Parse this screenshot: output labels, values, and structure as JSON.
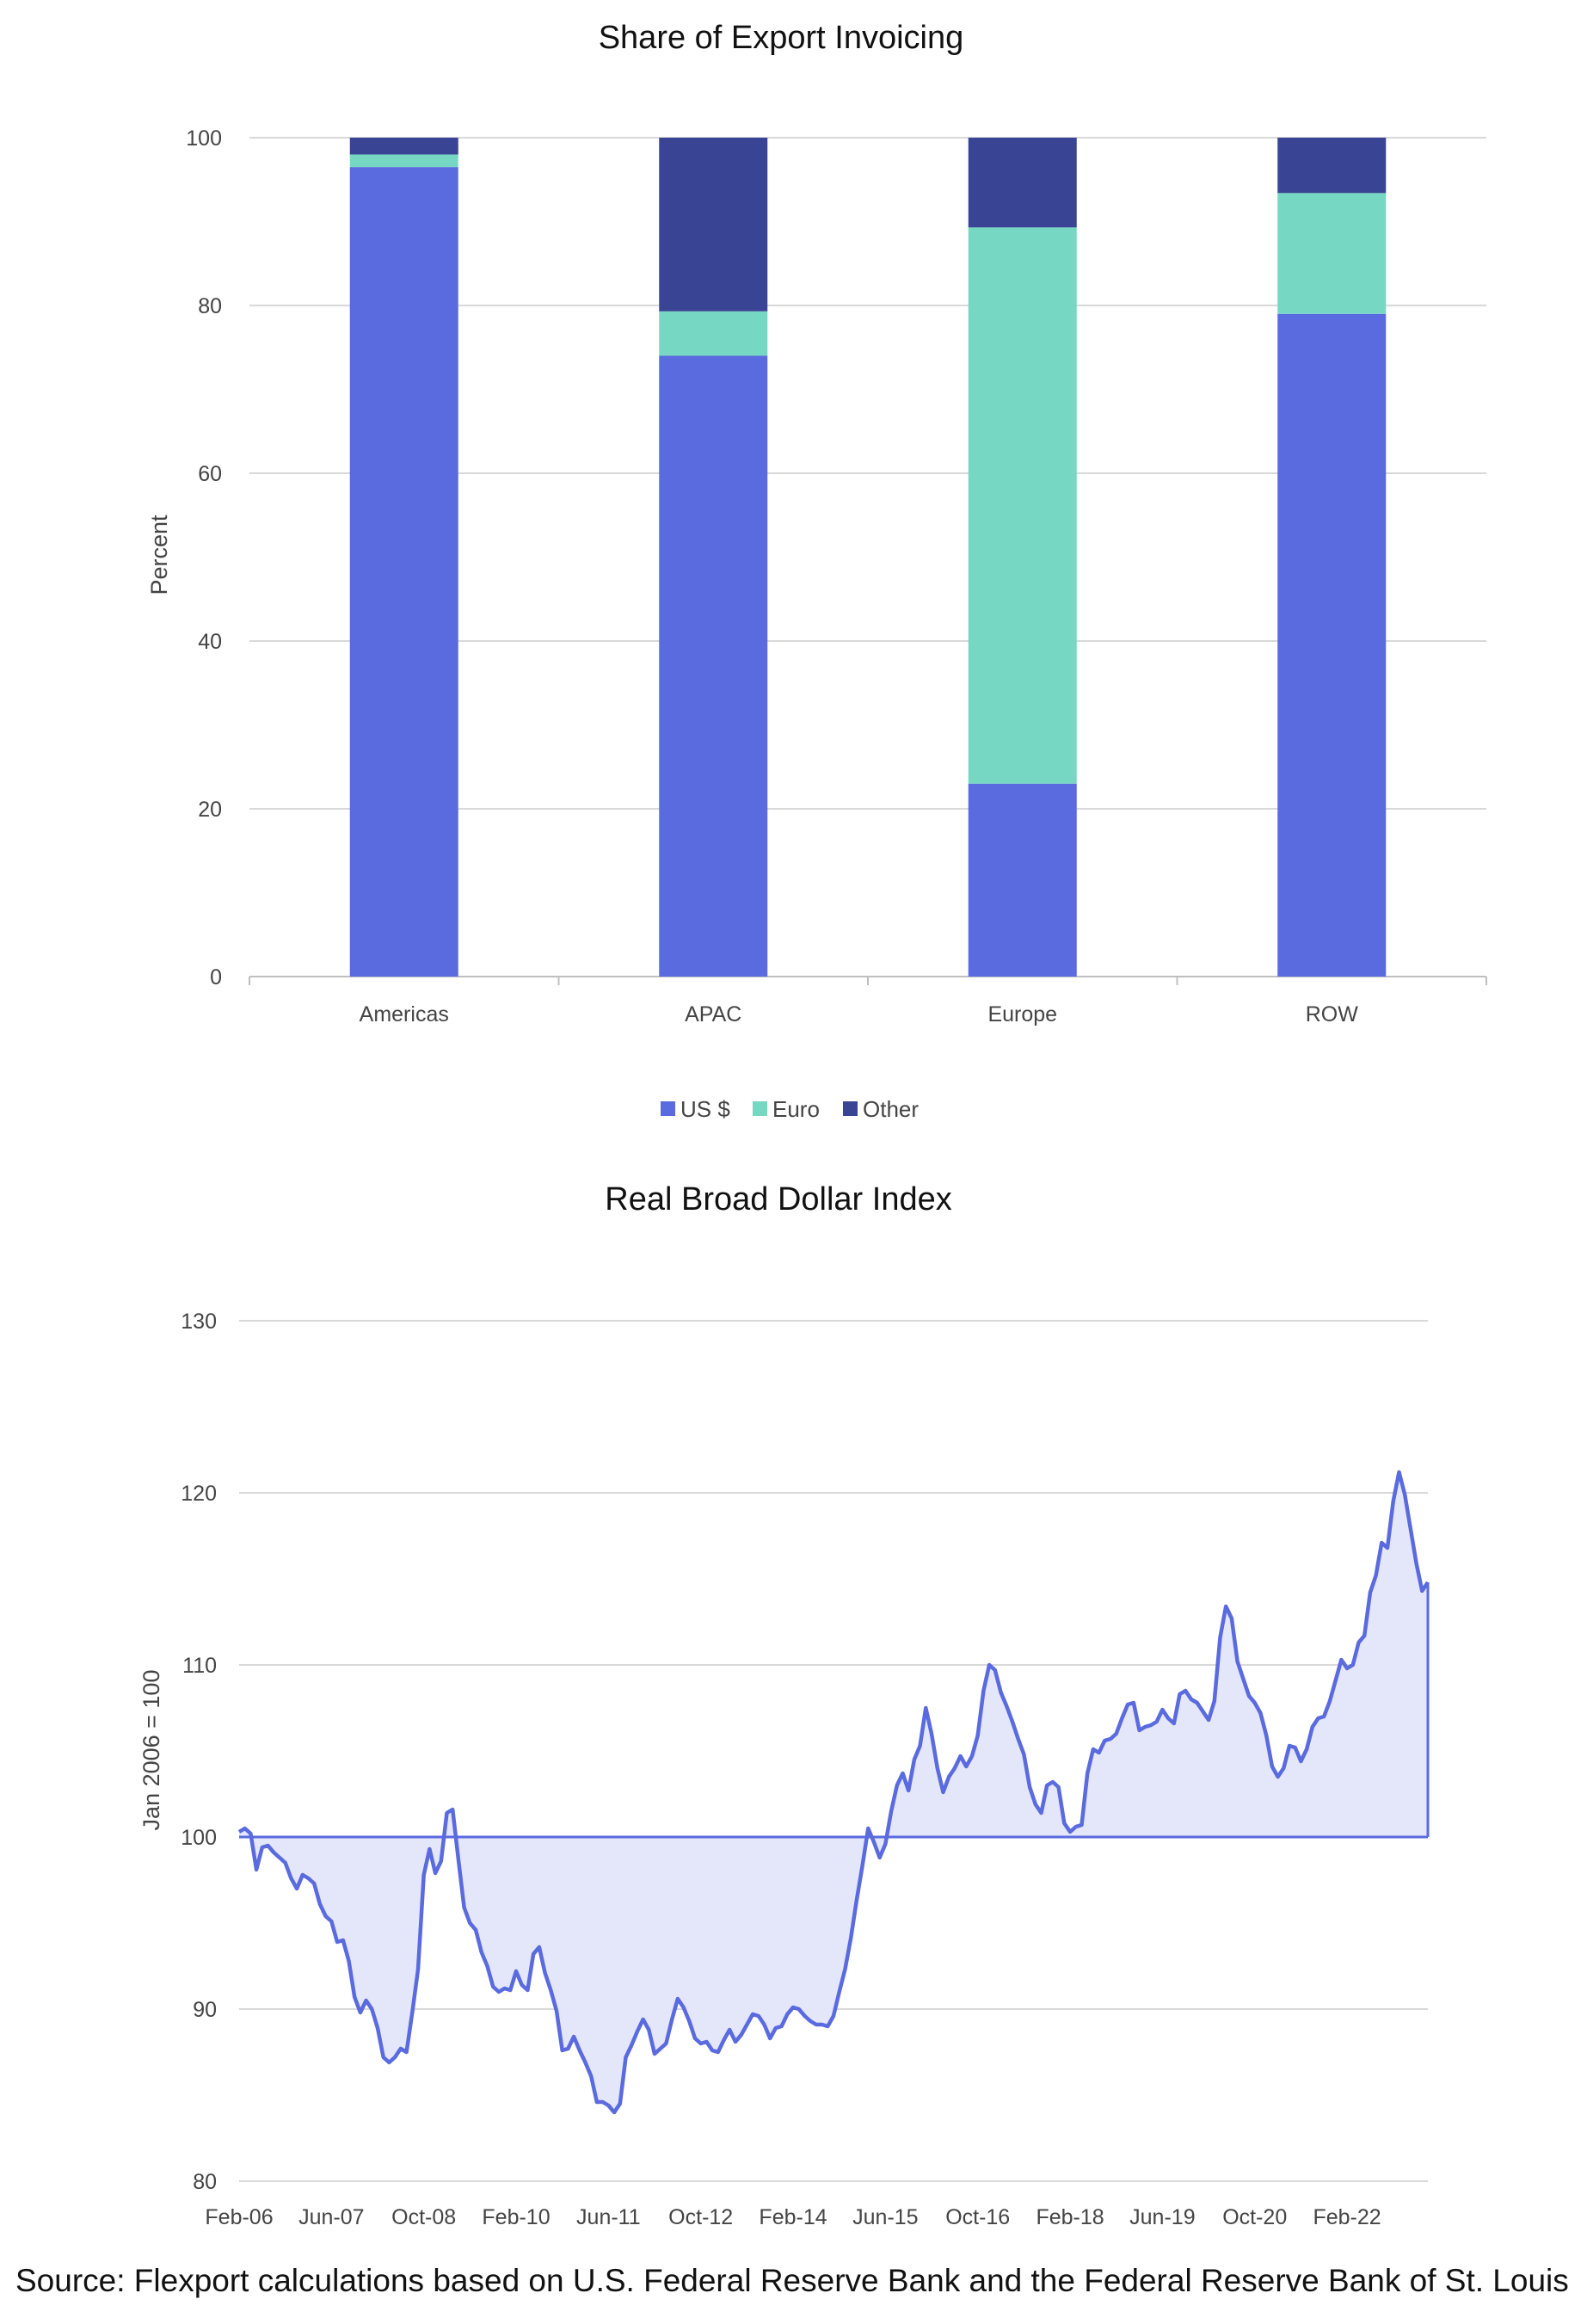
{
  "chart_data": [
    {
      "type": "bar",
      "stacked": true,
      "title": "Share of Export Invoicing",
      "ylabel": "Percent",
      "xlabel": "",
      "ylim": [
        0,
        100
      ],
      "yticks": [
        0,
        20,
        40,
        60,
        80,
        100
      ],
      "categories": [
        "Americas",
        "APAC",
        "Europe",
        "ROW"
      ],
      "series": [
        {
          "name": "US $",
          "color": "#5a6adf",
          "values": [
            96.5,
            74,
            23,
            79
          ]
        },
        {
          "name": "Euro",
          "color": "#76d8c2",
          "values": [
            1.5,
            5.3,
            66.3,
            14.4
          ]
        },
        {
          "name": "Other",
          "color": "#3a4494",
          "values": [
            2,
            20.7,
            10.7,
            6.6
          ]
        }
      ],
      "grid": true,
      "legend_position": "bottom"
    },
    {
      "type": "area",
      "title": "Real Broad Dollar Index",
      "ylabel": "Jan 2006 = 100",
      "xlabel": "",
      "ylim": [
        80,
        130
      ],
      "yticks": [
        80,
        90,
        100,
        110,
        120,
        130
      ],
      "baseline": 100,
      "xticks": [
        "Feb-06",
        "Jun-07",
        "Oct-08",
        "Feb-10",
        "Jun-11",
        "Oct-12",
        "Feb-14",
        "Jun-15",
        "Oct-16",
        "Feb-18",
        "Jun-19",
        "Oct-20",
        "Feb-22"
      ],
      "x_start": "Feb-06",
      "x_end": "Dec-22",
      "line_color": "#5a6adf",
      "fill_color": "#e4e6fa",
      "series": [
        {
          "values": [
            100.3,
            100.5,
            100.2,
            98.1,
            99.4,
            99.5,
            99.1,
            98.8,
            98.5,
            97.6,
            97,
            97.8,
            97.6,
            97.3,
            96.1,
            95.4,
            95.1,
            93.9,
            94,
            92.8,
            90.7,
            89.8,
            90.5,
            90,
            88.9,
            87.2,
            86.9,
            87.2,
            87.7,
            87.5,
            89.8,
            92.3,
            97.8,
            99.3,
            97.9,
            98.6,
            101.4,
            101.6,
            98.7,
            95.9,
            95,
            94.6,
            93.3,
            92.5,
            91.3,
            91,
            91.2,
            91.1,
            92.2,
            91.4,
            91.1,
            93.2,
            93.6,
            92.1,
            91.1,
            89.9,
            87.6,
            87.7,
            88.4,
            87.6,
            86.9,
            86.1,
            84.6,
            84.6,
            84.4,
            84,
            84.5,
            87.2,
            87.9,
            88.7,
            89.4,
            88.8,
            87.4,
            87.7,
            88,
            89.4,
            90.6,
            90.1,
            89.3,
            88.3,
            88,
            88.1,
            87.6,
            87.5,
            88.2,
            88.8,
            88.1,
            88.5,
            89.1,
            89.7,
            89.6,
            89.1,
            88.3,
            88.9,
            89,
            89.7,
            90.1,
            90,
            89.6,
            89.3,
            89.1,
            89.1,
            89,
            89.6,
            91,
            92.3,
            94.1,
            96.3,
            98.3,
            100.5,
            99.7,
            98.8,
            99.6,
            101.5,
            103,
            103.7,
            102.7,
            104.5,
            105.3,
            107.5,
            106,
            104,
            102.6,
            103.5,
            104,
            104.7,
            104.1,
            104.7,
            105.9,
            108.5,
            110,
            109.7,
            108.4,
            107.6,
            106.7,
            105.7,
            104.8,
            102.9,
            101.9,
            101.4,
            103,
            103.2,
            102.9,
            100.8,
            100.3,
            100.6,
            100.7,
            103.7,
            105.1,
            104.9,
            105.6,
            105.7,
            106,
            106.9,
            107.7,
            107.8,
            106.2,
            106.4,
            106.5,
            106.7,
            107.4,
            106.9,
            106.6,
            108.3,
            108.5,
            108,
            107.8,
            107.3,
            106.8,
            107.9,
            111.6,
            113.4,
            112.7,
            110.2,
            109.2,
            108.2,
            107.8,
            107.2,
            105.9,
            104.1,
            103.5,
            104,
            105.3,
            105.2,
            104.4,
            105.1,
            106.4,
            106.9,
            107,
            107.9,
            109.1,
            110.3,
            109.8,
            110,
            111.3,
            111.7,
            114.2,
            115.2,
            117.1,
            116.8,
            119.5,
            121.2,
            119.9,
            117.9,
            115.9,
            114.3,
            114.8
          ]
        }
      ],
      "grid": true
    }
  ],
  "legend": {
    "items": [
      {
        "label": "US $",
        "color": "#5a6adf"
      },
      {
        "label": "Euro",
        "color": "#76d8c2"
      },
      {
        "label": "Other",
        "color": "#3a4494"
      }
    ]
  },
  "source_note": "Source: Flexport calculations based on U.S. Federal Reserve Bank and the Federal Reserve Bank of St. Louis"
}
